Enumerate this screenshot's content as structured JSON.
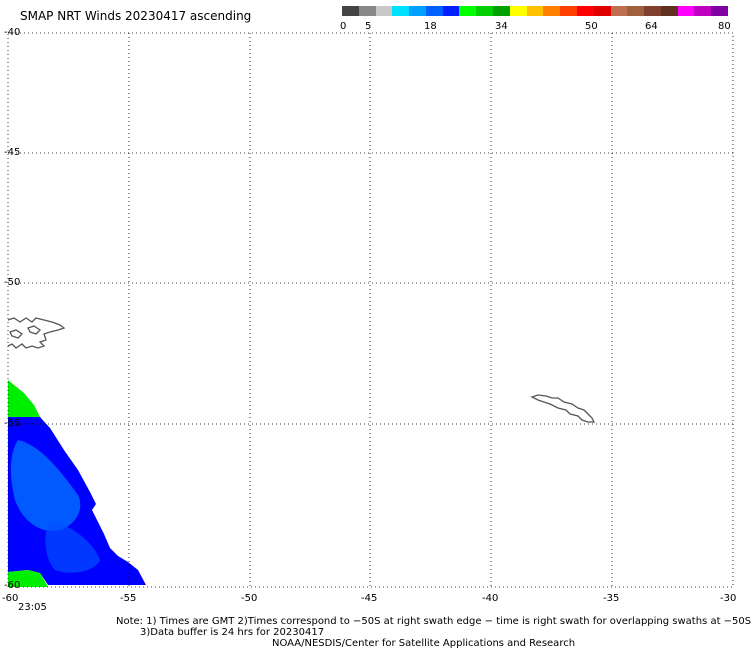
{
  "title": "SMAP NRT Winds 20230417 ascending",
  "colorbar": {
    "colors": [
      "#444444",
      "#888888",
      "#c8c8c8",
      "#00e0ff",
      "#00a0ff",
      "#0060ff",
      "#0020ff",
      "#00ff00",
      "#00d000",
      "#00a000",
      "#ffff00",
      "#ffc000",
      "#ff8000",
      "#ff4000",
      "#ff0000",
      "#e00000",
      "#c07050",
      "#a06040",
      "#804030",
      "#603020",
      "#ff00ff",
      "#c000c0",
      "#8000a0"
    ],
    "tick_labels": [
      "0",
      "5",
      "18",
      "34",
      "50",
      "64",
      "80"
    ]
  },
  "map": {
    "lat_labels": [
      "-40",
      "-45",
      "-50",
      "-55",
      "-60"
    ],
    "lon_labels": [
      "-60",
      "-55",
      "-50",
      "-45",
      "-40",
      "-35",
      "-30"
    ],
    "time_label": "23:05",
    "wind_field_colors": {
      "blue_dark": "#0000ff",
      "blue_light": "#0070ff",
      "green": "#00ee00"
    }
  },
  "notes": {
    "line1": "Note: 1) Times are GMT 2)Times correspond to −50S at right swath edge − time is right swath for overlapping swaths at −50S",
    "line2": "3)Data buffer is 24 hrs for 20230417",
    "line3": "NOAA/NESDIS/Center for Satellite Applications and Research"
  }
}
